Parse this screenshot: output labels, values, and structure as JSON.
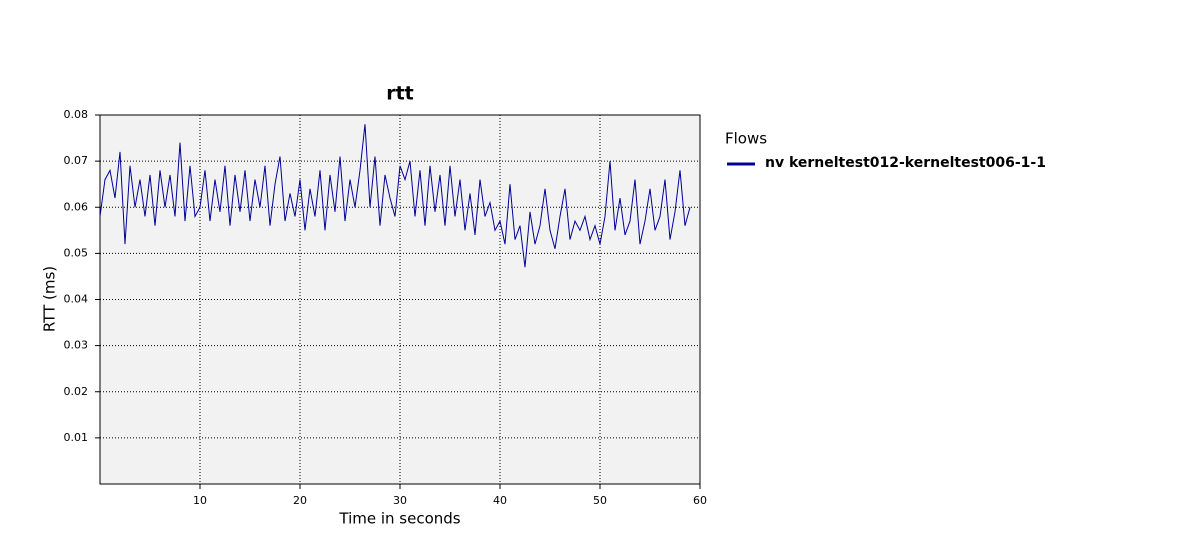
{
  "chart_data": {
    "type": "line",
    "title": "rtt",
    "xlabel": "Time in seconds",
    "ylabel": "RTT (ms)",
    "legend_title": "Flows",
    "legend": "right",
    "grid": true,
    "xlim": [
      0,
      60
    ],
    "ylim": [
      0,
      0.08
    ],
    "xticks": [
      10,
      20,
      30,
      40,
      50,
      60
    ],
    "yticks": [
      0.01,
      0.02,
      0.03,
      0.04,
      0.05,
      0.06,
      0.07,
      0.08
    ],
    "x": [
      0,
      0.5,
      1,
      1.5,
      2,
      2.5,
      3,
      3.5,
      4,
      4.5,
      5,
      5.5,
      6,
      6.5,
      7,
      7.5,
      8,
      8.5,
      9,
      9.5,
      10,
      10.5,
      11,
      11.5,
      12,
      12.5,
      13,
      13.5,
      14,
      14.5,
      15,
      15.5,
      16,
      16.5,
      17,
      17.5,
      18,
      18.5,
      19,
      19.5,
      20,
      20.5,
      21,
      21.5,
      22,
      22.5,
      23,
      23.5,
      24,
      24.5,
      25,
      25.5,
      26,
      26.5,
      27,
      27.5,
      28,
      28.5,
      29,
      29.5,
      30,
      30.5,
      31,
      31.5,
      32,
      32.5,
      33,
      33.5,
      34,
      34.5,
      35,
      35.5,
      36,
      36.5,
      37,
      37.5,
      38,
      38.5,
      39,
      39.5,
      40,
      40.5,
      41,
      41.5,
      42,
      42.5,
      43,
      43.5,
      44,
      44.5,
      45,
      45.5,
      46,
      46.5,
      47,
      47.5,
      48,
      48.5,
      49,
      49.5,
      50,
      50.5,
      51,
      51.5,
      52,
      52.5,
      53,
      53.5,
      54,
      54.5,
      55,
      55.5,
      56,
      56.5,
      57,
      57.5,
      58,
      58.5,
      59
    ],
    "series": [
      {
        "name": "nv kerneltest012-kerneltest006-1-1",
        "color": "#000099",
        "values": [
          0.058,
          0.066,
          0.068,
          0.062,
          0.072,
          0.052,
          0.069,
          0.06,
          0.066,
          0.058,
          0.067,
          0.056,
          0.068,
          0.06,
          0.067,
          0.058,
          0.074,
          0.057,
          0.069,
          0.058,
          0.06,
          0.068,
          0.057,
          0.066,
          0.059,
          0.069,
          0.056,
          0.067,
          0.059,
          0.068,
          0.057,
          0.066,
          0.06,
          0.069,
          0.056,
          0.065,
          0.071,
          0.057,
          0.063,
          0.058,
          0.066,
          0.055,
          0.064,
          0.058,
          0.068,
          0.055,
          0.067,
          0.059,
          0.071,
          0.057,
          0.066,
          0.06,
          0.068,
          0.078,
          0.06,
          0.071,
          0.056,
          0.067,
          0.062,
          0.058,
          0.069,
          0.066,
          0.07,
          0.058,
          0.068,
          0.056,
          0.069,
          0.059,
          0.067,
          0.056,
          0.069,
          0.058,
          0.066,
          0.055,
          0.063,
          0.054,
          0.066,
          0.058,
          0.061,
          0.055,
          0.057,
          0.052,
          0.065,
          0.053,
          0.056,
          0.047,
          0.059,
          0.052,
          0.056,
          0.064,
          0.055,
          0.051,
          0.058,
          0.064,
          0.053,
          0.057,
          0.055,
          0.058,
          0.053,
          0.056,
          0.052,
          0.058,
          0.07,
          0.055,
          0.062,
          0.054,
          0.057,
          0.066,
          0.052,
          0.057,
          0.064,
          0.055,
          0.058,
          0.066,
          0.053,
          0.059,
          0.068,
          0.056,
          0.06
        ]
      }
    ]
  }
}
